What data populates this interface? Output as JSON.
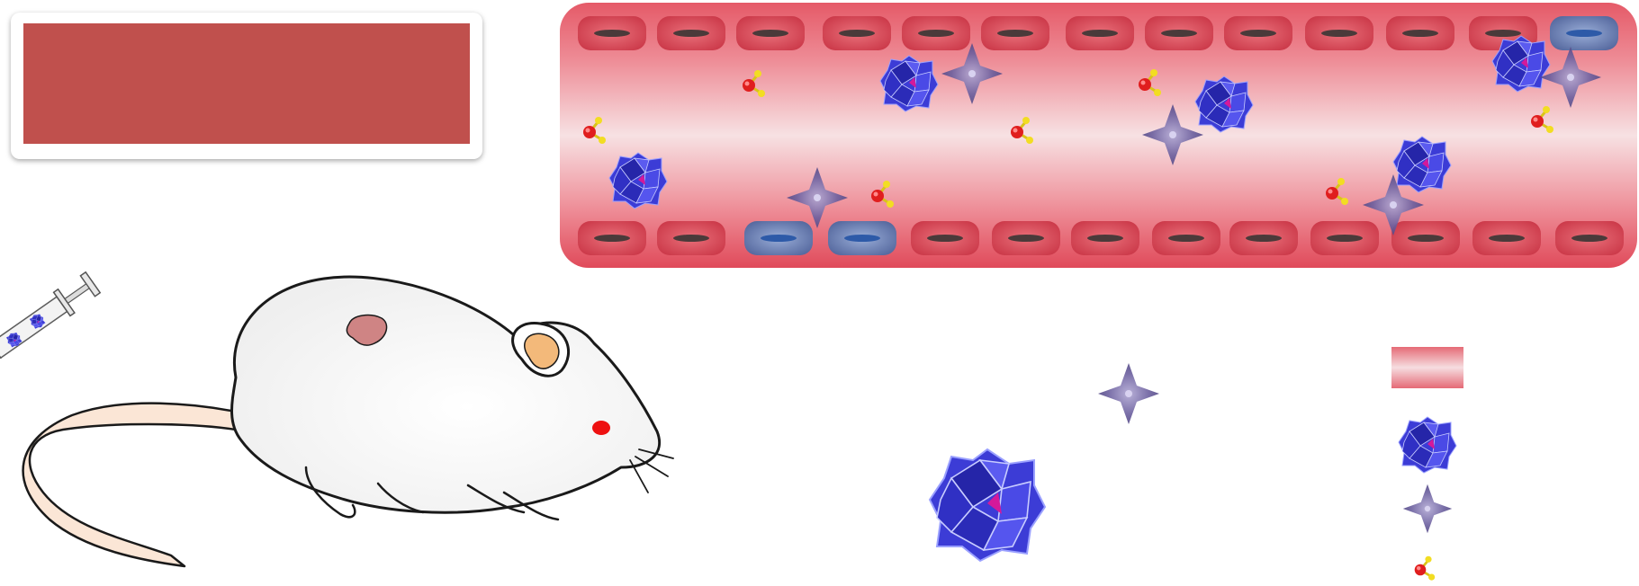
{
  "title_box": {
    "text": ""
  },
  "colors": {
    "vessel_red": "#e86472",
    "vessel_light": "#f6d9dc",
    "rbc_red": "#e04553",
    "rbc_blue": "#6d86c4",
    "polyoxometalate_blue": "#3333cc",
    "star_purple": "#6b5f9e",
    "water_oxygen": "#e01e1e",
    "water_hydrogen": "#f2dd22",
    "mouse_ear": "#f3b97a",
    "mouse_eye": "#ee1111",
    "label_box_fill": "#c0504d"
  },
  "legend": [
    {
      "icon": "blood-vessel-segment-icon",
      "text": ""
    },
    {
      "icon": "polyoxometalate-cluster-icon",
      "text": ""
    },
    {
      "icon": "purple-star-particle-icon",
      "text": ""
    },
    {
      "icon": "water-molecule-icon",
      "text": ""
    }
  ],
  "icons": [
    "syringe-icon",
    "mouse-icon",
    "tumor-icon",
    "red-blood-cell-icon",
    "blue-blood-cell-icon"
  ]
}
